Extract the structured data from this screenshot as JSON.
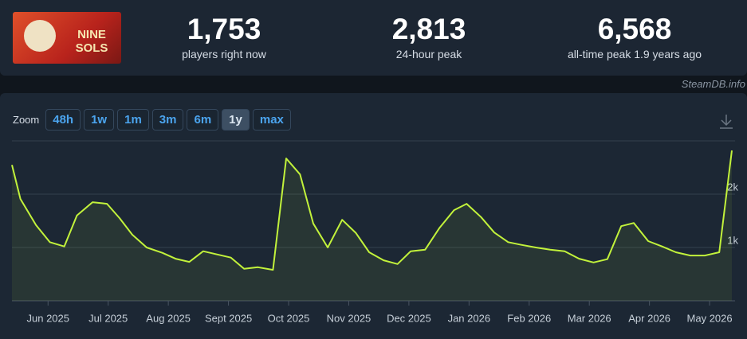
{
  "header": {
    "logo_text": "NINE SOLS",
    "stats": [
      {
        "value": "1,753",
        "label": "players right now"
      },
      {
        "value": "2,813",
        "label": "24-hour peak"
      },
      {
        "value": "6,568",
        "label": "all-time peak 1.9 years ago"
      }
    ],
    "credit": "SteamDB.info"
  },
  "zoom": {
    "label": "Zoom",
    "buttons": [
      "48h",
      "1w",
      "1m",
      "3m",
      "6m",
      "1y",
      "max"
    ],
    "active": "1y"
  },
  "chart_data": {
    "type": "line",
    "color": "#c2f23b",
    "x": [
      -0.6,
      -0.46,
      -0.2,
      0.03,
      0.27,
      0.48,
      0.74,
      0.98,
      1.19,
      1.4,
      1.64,
      1.9,
      2.12,
      2.35,
      2.58,
      2.81,
      3.04,
      3.26,
      3.49,
      3.74,
      3.96,
      4.19,
      4.41,
      4.65,
      4.89,
      5.12,
      5.34,
      5.58,
      5.81,
      6.03,
      6.27,
      6.51,
      6.75,
      6.96,
      7.2,
      7.42,
      7.65,
      7.87,
      8.11,
      8.35,
      8.59,
      8.83,
      9.07,
      9.3,
      9.53,
      9.74,
      9.98,
      10.21,
      10.44,
      10.68,
      10.92,
      11.16,
      11.37
    ],
    "values": [
      2550,
      1910,
      1420,
      1100,
      1020,
      1600,
      1850,
      1820,
      1550,
      1240,
      1000,
      900,
      790,
      730,
      930,
      870,
      810,
      600,
      630,
      580,
      2670,
      2370,
      1450,
      1000,
      1520,
      1270,
      910,
      760,
      690,
      930,
      960,
      1370,
      1700,
      1820,
      1570,
      1280,
      1100,
      1050,
      1000,
      960,
      930,
      790,
      720,
      780,
      1400,
      1460,
      1120,
      1020,
      910,
      850,
      850,
      910,
      2820
    ],
    "xlim": [
      -0.6,
      11.37
    ],
    "xticks": [
      {
        "value": 0,
        "label": "Jun 2025"
      },
      {
        "value": 1,
        "label": "Jul 2025"
      },
      {
        "value": 2,
        "label": "Aug 2025"
      },
      {
        "value": 3,
        "label": "Sept 2025"
      },
      {
        "value": 4,
        "label": "Oct 2025"
      },
      {
        "value": 5,
        "label": "Nov 2025"
      },
      {
        "value": 6,
        "label": "Dec 2025"
      },
      {
        "value": 7,
        "label": "Jan 2026"
      },
      {
        "value": 8,
        "label": "Feb 2026"
      },
      {
        "value": 9,
        "label": "Mar 2026"
      },
      {
        "value": 10,
        "label": "Apr 2026"
      },
      {
        "value": 11,
        "label": "May 2026"
      }
    ],
    "ylim": [
      0,
      3000
    ],
    "yticks": [
      {
        "value": 1000,
        "label": "1k"
      },
      {
        "value": 2000,
        "label": "2k"
      }
    ],
    "grid_lines": [
      0,
      1000,
      2000,
      3000
    ]
  }
}
